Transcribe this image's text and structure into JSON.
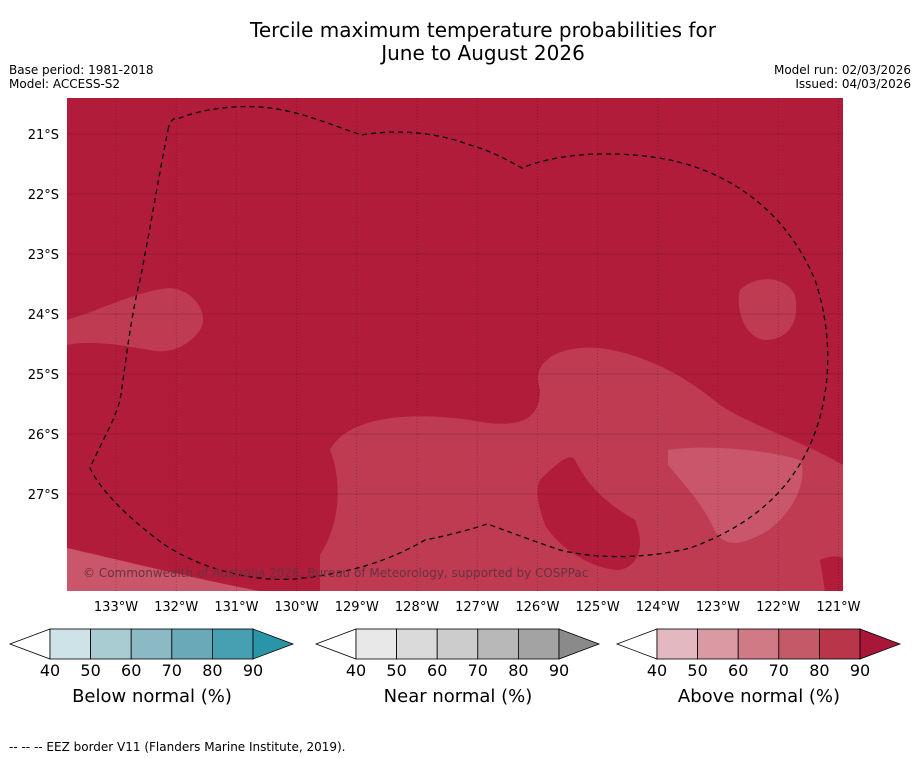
{
  "title": {
    "line1": "Tercile maximum temperature probabilities for",
    "line2": "June to August 2026"
  },
  "meta": {
    "base_period": "Base period: 1981-2018",
    "model": "Model: ACCESS-S2",
    "model_run": "Model run: 02/03/2026",
    "issued": "Issued: 04/03/2026"
  },
  "map": {
    "lat_labels": [
      "21°S",
      "22°S",
      "23°S",
      "24°S",
      "25°S",
      "26°S",
      "27°S"
    ],
    "lon_labels": [
      "133°W",
      "132°W",
      "131°W",
      "130°W",
      "129°W",
      "128°W",
      "127°W",
      "126°W",
      "125°W",
      "124°W",
      "123°W",
      "122°W",
      "121°W"
    ],
    "copyright": "© Commonwealth of Australia 2026, Bureau of Meteorology, supported by COSPPac",
    "colors": {
      "above_80_90": "#b01c3a",
      "above_70_80": "#be3b52",
      "above_60_70": "#c9566a"
    }
  },
  "colorbars": [
    {
      "label": "Below normal (%)",
      "ticks": [
        "40",
        "50",
        "60",
        "70",
        "80",
        "90"
      ],
      "colors": [
        "#cde3e8",
        "#a9cbd2",
        "#8bb9c4",
        "#6aaab8",
        "#46a0b1",
        "#2a94a8"
      ]
    },
    {
      "label": "Near normal (%)",
      "ticks": [
        "40",
        "50",
        "60",
        "70",
        "80",
        "90"
      ],
      "colors": [
        "#e8e8e8",
        "#dadada",
        "#cccccc",
        "#b8b8b8",
        "#a3a3a3",
        "#8a8a8a"
      ]
    },
    {
      "label": "Above normal (%)",
      "ticks": [
        "40",
        "50",
        "60",
        "70",
        "80",
        "90"
      ],
      "colors": [
        "#e4b8c0",
        "#d99aa4",
        "#cf7a85",
        "#c45a68",
        "#b8354a",
        "#a81638"
      ]
    }
  ],
  "footnote": "--  --  -- EEZ border V11 (Flanders Marine Institute, 2019)."
}
